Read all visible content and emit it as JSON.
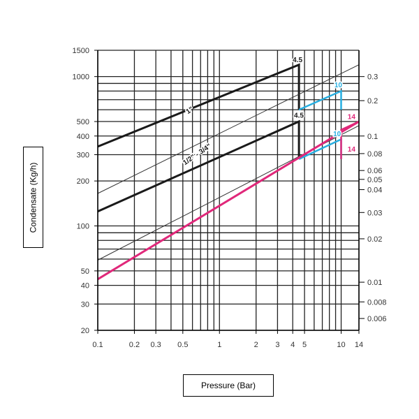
{
  "chart_data": {
    "type": "line",
    "title": "",
    "xlabel": "Pressure (Bar)",
    "ylabel": "Condensate (Kg/h)",
    "x_scale": "log",
    "y_scale": "log",
    "xlim": [
      0.1,
      14
    ],
    "ylim": [
      20,
      1500
    ],
    "grid": true,
    "x_ticks": [
      {
        "value": 0.1,
        "label": "0.1"
      },
      {
        "value": 0.2,
        "label": "0.2"
      },
      {
        "value": 0.3,
        "label": "0.3"
      },
      {
        "value": 0.5,
        "label": "0.5"
      },
      {
        "value": 1,
        "label": "1"
      },
      {
        "value": 2,
        "label": "2"
      },
      {
        "value": 3,
        "label": "3"
      },
      {
        "value": 4,
        "label": "4"
      },
      {
        "value": 5,
        "label": "5"
      },
      {
        "value": 10,
        "label": "10"
      },
      {
        "value": 14,
        "label": "14"
      }
    ],
    "x_gridlines": [
      0.1,
      0.2,
      0.3,
      0.4,
      0.5,
      0.6,
      0.7,
      0.8,
      0.9,
      1,
      2,
      3,
      4,
      5,
      6,
      7,
      8,
      9,
      10,
      14
    ],
    "y_ticks_left": [
      {
        "value": 20,
        "label": "20"
      },
      {
        "value": 30,
        "label": "30"
      },
      {
        "value": 40,
        "label": "40"
      },
      {
        "value": 50,
        "label": "50"
      },
      {
        "value": 100,
        "label": "100"
      },
      {
        "value": 200,
        "label": "200"
      },
      {
        "value": 300,
        "label": "300"
      },
      {
        "value": 400,
        "label": "400"
      },
      {
        "value": 500,
        "label": "500"
      },
      {
        "value": 1000,
        "label": "1000"
      },
      {
        "value": 1500,
        "label": "1500"
      }
    ],
    "y_gridlines": [
      20,
      30,
      40,
      50,
      60,
      70,
      80,
      90,
      100,
      200,
      300,
      400,
      500,
      600,
      700,
      800,
      900,
      1000,
      1500
    ],
    "y_ticks_right": [
      {
        "value": 0.3,
        "label": "0.3"
      },
      {
        "value": 0.2,
        "label": "0.2"
      },
      {
        "value": 0.1,
        "label": "0.1"
      },
      {
        "value": 0.08,
        "label": "0.08"
      },
      {
        "value": 0.06,
        "label": "0.06"
      },
      {
        "value": 0.05,
        "label": "0.05"
      },
      {
        "value": 0.04,
        "label": "0.04"
      },
      {
        "value": 0.03,
        "label": "0.03"
      },
      {
        "value": 0.02,
        "label": "0.02"
      },
      {
        "value": 0.01,
        "label": "0.01"
      },
      {
        "value": 0.008,
        "label": "0.008"
      },
      {
        "value": 0.006,
        "label": "0.006"
      }
    ],
    "y_right_equivalent_at_left": {
      "0.3": 1000,
      "0.2": 690,
      "0.1": 400,
      "0.08": 305,
      "0.06": 235,
      "0.05": 205,
      "0.04": 175,
      "0.03": 123,
      "0.02": 82,
      "0.01": 42,
      "0.008": 31,
      "0.006": 24
    },
    "series": [
      {
        "name": "1\"",
        "color": "#1a1a1a",
        "width": 3,
        "x": [
          0.1,
          4.5,
          4.5
        ],
        "y": [
          340,
          1200,
          600
        ]
      },
      {
        "name": "1/2\" - 3/4\"",
        "color": "#1a1a1a",
        "width": 3,
        "x": [
          0.1,
          4.5,
          4.5
        ],
        "y": [
          125,
          500,
          280
        ]
      },
      {
        "name": "",
        "color": "#333333",
        "width": 1,
        "x": [
          0.1,
          14
        ],
        "y": [
          165,
          1200
        ]
      },
      {
        "name": "",
        "color": "#333333",
        "width": 1,
        "x": [
          0.1,
          14
        ],
        "y": [
          59,
          470
        ]
      },
      {
        "name": "",
        "color": "#27aee0",
        "width": 2.5,
        "x": [
          4.5,
          10,
          10
        ],
        "y": [
          600,
          800,
          600
        ]
      },
      {
        "name": "",
        "color": "#27aee0",
        "width": 2.5,
        "x": [
          4.5,
          10,
          10
        ],
        "y": [
          280,
          380,
          280
        ]
      },
      {
        "name": "",
        "color": "#e0287a",
        "width": 3,
        "x": [
          0.1,
          14
        ],
        "y": [
          44,
          500
        ]
      },
      {
        "name": "",
        "color": "#e0287a",
        "width": 2.5,
        "x": [
          10,
          10,
          14
        ],
        "y": [
          280,
          440,
          500
        ]
      }
    ],
    "annotations": [
      {
        "text": "4.5",
        "x": 4.0,
        "y": 1250,
        "color": "#1a1a1a",
        "rotate": false
      },
      {
        "text": "4.5",
        "x": 4.1,
        "y": 530,
        "color": "#1a1a1a",
        "rotate": false
      },
      {
        "text": "10",
        "x": 8.8,
        "y": 850,
        "color": "#27aee0",
        "rotate": false
      },
      {
        "text": "10",
        "x": 8.6,
        "y": 400,
        "color": "#27aee0",
        "rotate": false
      },
      {
        "text": "14",
        "x": 11.3,
        "y": 520,
        "color": "#e0287a",
        "rotate": false
      },
      {
        "text": "14",
        "x": 11.3,
        "y": 315,
        "color": "#e0287a",
        "rotate": false
      },
      {
        "text": "1\"",
        "x": 0.55,
        "y": 560,
        "color": "#1a1a1a",
        "rotate": true
      },
      {
        "text": "1/2\" - 3/4\"",
        "x": 0.52,
        "y": 255,
        "color": "#1a1a1a",
        "rotate": true
      }
    ]
  }
}
